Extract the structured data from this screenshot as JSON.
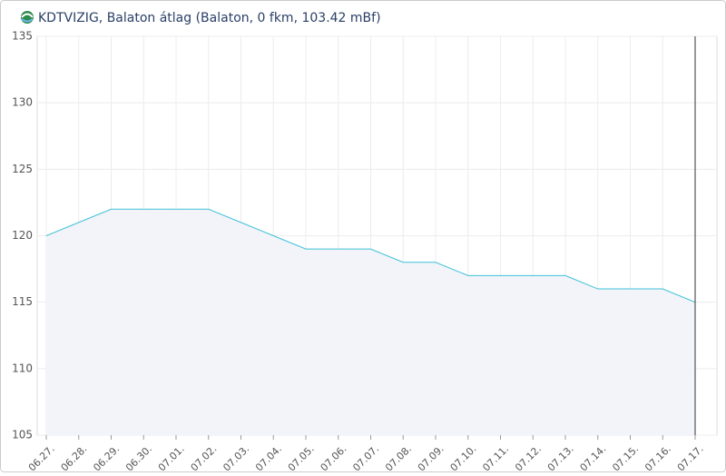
{
  "chart_data": {
    "type": "area",
    "title": "KDTVIZIG, Balaton átlag (Balaton, 0 fkm, 103.42 mBf)",
    "categories": [
      "06.27.",
      "06.28.",
      "06.29.",
      "06.30.",
      "07.01.",
      "07.02.",
      "07.03.",
      "07.04.",
      "07.05.",
      "07.06.",
      "07.07.",
      "07.08.",
      "07.09.",
      "07.10.",
      "07.11.",
      "07.12.",
      "07.13.",
      "07.14.",
      "07.15.",
      "07.16.",
      "07.17."
    ],
    "values": [
      120,
      121,
      122,
      122,
      122,
      122,
      121,
      120,
      119,
      119,
      119,
      118,
      118,
      117,
      117,
      117,
      117,
      116,
      116,
      116,
      115
    ],
    "color": "#3fc1d9",
    "ylim": [
      105,
      135
    ],
    "yticks": [
      105,
      110,
      115,
      120,
      125,
      130,
      135
    ],
    "grid": true
  }
}
